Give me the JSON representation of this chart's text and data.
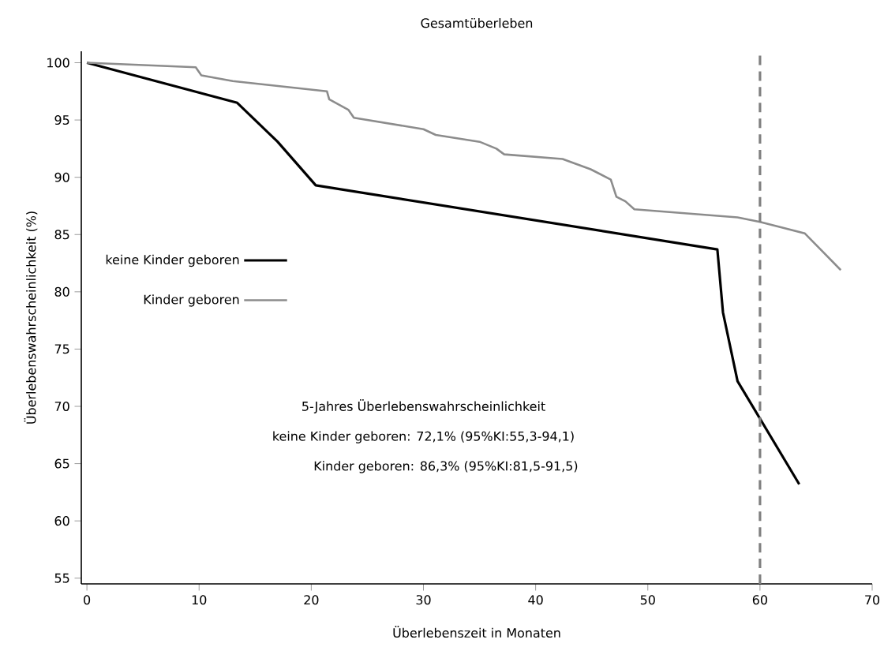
{
  "chart_data": {
    "type": "line",
    "title": "Gesamtüberleben",
    "xlabel": "Überlebenszeit in Monaten",
    "ylabel": "Überlebenswahrscheinlichkeit (%)",
    "xlim": [
      -0.5,
      70
    ],
    "ylim": [
      54.5,
      101
    ],
    "xticks": [
      0,
      10,
      20,
      30,
      40,
      50,
      60,
      70
    ],
    "yticks": [
      55,
      60,
      65,
      70,
      75,
      80,
      85,
      90,
      95,
      100
    ],
    "grid": false,
    "legend": "left",
    "marker": "none",
    "line_style": "solid",
    "series": [
      {
        "name": "keine Kinder geboren",
        "color": "#000000",
        "x": [
          0,
          13.4,
          17,
          20.4,
          56.2,
          56.7,
          58,
          63.5
        ],
        "values": [
          100,
          96.5,
          93.1,
          89.3,
          83.7,
          78.2,
          72.2,
          63.2
        ]
      },
      {
        "name": "Kinder geboren",
        "color": "#8c8c8c",
        "x": [
          0,
          9.7,
          10.2,
          13,
          21.4,
          21.6,
          23.3,
          23.8,
          30,
          31.1,
          35,
          36.5,
          37.2,
          42.4,
          44.9,
          46.7,
          47.2,
          48,
          48.8,
          58,
          60,
          62,
          64,
          65.4,
          67.2
        ],
        "values": [
          100,
          99.6,
          98.9,
          98.4,
          97.5,
          96.8,
          95.9,
          95.2,
          94.2,
          93.7,
          93.1,
          92.5,
          92,
          91.6,
          90.7,
          89.8,
          88.3,
          87.9,
          87.2,
          86.5,
          86.1,
          85.6,
          85.1,
          83.7,
          81.9
        ]
      }
    ],
    "ref_lines": [
      {
        "axis": "x",
        "value": 60,
        "color": "#808080",
        "line_style": "dashed"
      }
    ],
    "annotations": [
      "5-Jahres Überlebenswahrscheinlichkeit",
      "keine Kinder geboren: 72,1% (95%KI:55,3-94,1)",
      "Kinder geboren: 86,3% (95%KI:81,5-91,5)"
    ]
  }
}
